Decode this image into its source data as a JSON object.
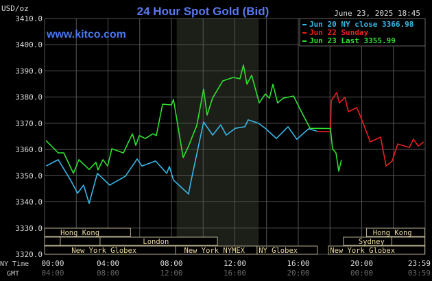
{
  "chart_data": {
    "type": "line",
    "title": "24 Hour Spot Gold (Bid)",
    "brand": "www.kitco.com",
    "timestamp": "June 23, 2025 18:45",
    "ylabel": "USD/oz",
    "ylim": [
      3320,
      3410
    ],
    "yticks": [
      "3410.0",
      "3400.0",
      "3390.0",
      "3380.0",
      "3370.0",
      "3360.0",
      "3350.0",
      "3340.0",
      "3330.0",
      "3320.0"
    ],
    "xlim_hours": [
      0,
      24
    ],
    "xrow_label_ny": "NY Time",
    "xrow_label_gmt": "GMT",
    "xticks_ny": [
      "00:00",
      "04:00",
      "08:00",
      "12:00",
      "16:00",
      "20:00",
      "23:59"
    ],
    "xticks_gmt": [
      "04:00",
      "08:00",
      "12:00",
      "16:00",
      "20:00",
      "00:00",
      "03:59"
    ],
    "grid": true,
    "legend_position": "top-right",
    "highlight_band_hours": [
      8.33,
      13.5
    ],
    "series": [
      {
        "name": "Jun 20 NY close 3366.98",
        "color": "#3ab8e8",
        "x": [
          0.1,
          0.86,
          1.64,
          2.08,
          2.46,
          2.81,
          3.33,
          4.11,
          5.1,
          5.84,
          6.14,
          7.0,
          7.7,
          7.87,
          8.13,
          9.08,
          9.21,
          10.03,
          10.6,
          11.11,
          11.46,
          12.02,
          12.63,
          12.84,
          13.49,
          13.92,
          14.62,
          15.35,
          15.91,
          16.65,
          17.17
        ],
        "y": [
          3353.7,
          3356.1,
          3348.3,
          3343.3,
          3346.4,
          3339.4,
          3350.9,
          3346.4,
          3349.8,
          3356.4,
          3353.7,
          3355.6,
          3350.9,
          3353.5,
          3348.3,
          3343.0,
          3347.2,
          3370.5,
          3365.5,
          3369.4,
          3365.5,
          3368.1,
          3368.7,
          3371.3,
          3370.0,
          3368.1,
          3364.2,
          3368.7,
          3363.9,
          3367.9,
          3366.98
        ]
      },
      {
        "name": "Jun 22 Sunday",
        "color": "#e82020",
        "x": [
          17.17,
          18.03,
          18.08,
          18.42,
          18.59,
          18.94,
          19.16,
          19.68,
          19.89,
          20.54,
          21.19,
          21.54,
          21.92,
          22.27,
          23.0,
          23.26,
          23.57,
          23.91
        ],
        "y": [
          3366.8,
          3366.8,
          3378.6,
          3381.7,
          3377.8,
          3379.9,
          3374.4,
          3376.0,
          3373.1,
          3362.9,
          3364.7,
          3353.7,
          3355.6,
          3362.1,
          3360.8,
          3363.9,
          3361.3,
          3362.9
        ]
      },
      {
        "name": "Jun 23 Last 3355.99",
        "color": "#30e030",
        "x": [
          0.09,
          0.86,
          1.21,
          1.82,
          2.16,
          2.81,
          3.24,
          3.37,
          3.68,
          3.98,
          4.24,
          4.97,
          5.54,
          5.75,
          5.97,
          6.36,
          6.83,
          7.05,
          7.44,
          8.0,
          8.13,
          8.74,
          9.08,
          9.6,
          10.03,
          10.25,
          10.59,
          11.24,
          11.89,
          12.32,
          12.54,
          12.76,
          13.06,
          13.54,
          13.92,
          14.18,
          14.4,
          14.7,
          15.05,
          15.7,
          16.13,
          16.74,
          18.03,
          18.16,
          18.38,
          18.55,
          18.72
        ],
        "y": [
          3363.4,
          3358.7,
          3358.7,
          3350.9,
          3356.1,
          3352.4,
          3355.1,
          3352.2,
          3356.1,
          3353.7,
          3360.3,
          3358.7,
          3366.0,
          3361.6,
          3365.3,
          3364.2,
          3366.0,
          3365.3,
          3377.3,
          3377.0,
          3379.1,
          3356.9,
          3361.3,
          3369.2,
          3383.0,
          3373.1,
          3379.6,
          3386.2,
          3387.5,
          3387.0,
          3392.2,
          3384.9,
          3388.3,
          3377.8,
          3381.2,
          3379.6,
          3384.9,
          3377.8,
          3379.6,
          3380.4,
          3375.2,
          3368.1,
          3368.0,
          3360.3,
          3358.7,
          3351.7,
          3355.99
        ]
      }
    ],
    "sessions": [
      {
        "label": "Hong Kong",
        "row": 0,
        "start": 0.0,
        "end": 5.42,
        "label_at": 1.0
      },
      {
        "label": "",
        "row": 1,
        "start": 0.0,
        "end": 0.99
      },
      {
        "label": "",
        "row": 1,
        "start": 0.99,
        "end": 3.5
      },
      {
        "label": "London",
        "row": 1,
        "start": 3.5,
        "end": 10.9,
        "label_at": 6.2
      },
      {
        "label": "New York Globex",
        "row": 2,
        "start": 0.0,
        "end": 8.26,
        "label_at": 1.7
      },
      {
        "label": "New York NYMEX",
        "row": 2,
        "start": 8.26,
        "end": 13.4,
        "label_at": 8.8
      },
      {
        "label": "NY Globex",
        "row": 2,
        "start": 13.4,
        "end": 17.2,
        "label_at": 13.5
      },
      {
        "label": "New York Globex",
        "row": 2,
        "start": 17.9,
        "end": 23.98,
        "label_at": 18.0
      },
      {
        "label": "Hong Kong",
        "row": 0,
        "start": 20.3,
        "end": 23.98,
        "label_at": 20.7
      },
      {
        "label": "",
        "row": 1,
        "start": 18.85,
        "end": 21.9
      },
      {
        "label": "Sydney",
        "row": 1,
        "start": 18.85,
        "end": 21.9,
        "label_at": 19.8
      },
      {
        "label": "",
        "row": 1,
        "start": 21.9,
        "end": 23.98
      }
    ]
  }
}
